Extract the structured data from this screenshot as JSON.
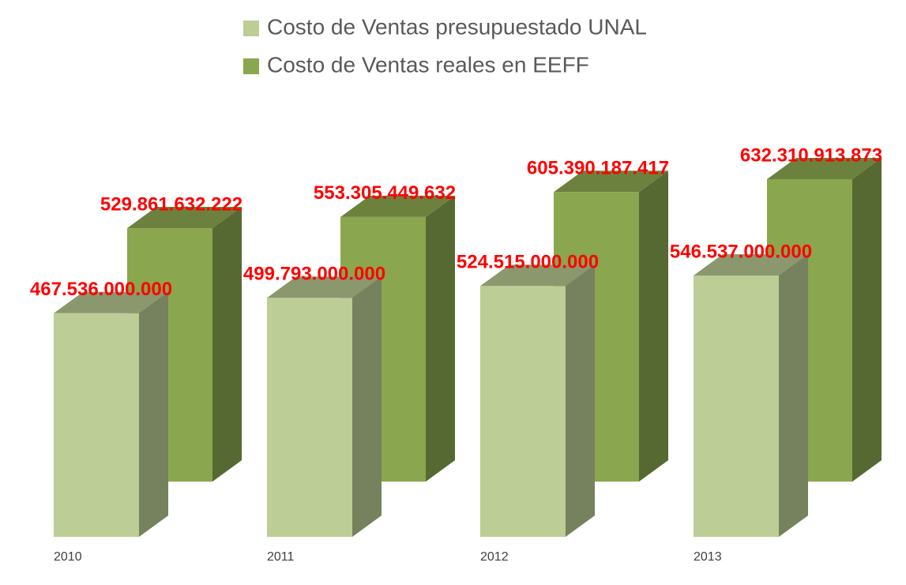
{
  "chart_data": {
    "type": "bar3d",
    "categories": [
      "2010",
      "2011",
      "2012",
      "2013"
    ],
    "series": [
      {
        "name": "Costo  de Ventas presupuestado UNAL",
        "color": "#bccd95",
        "values": [
          467536000000,
          499793000000,
          524515000000,
          546537000000
        ],
        "value_labels": [
          "467.536.000.000",
          "499.793.000.000",
          "524.515.000.000",
          "546.537.000.000"
        ]
      },
      {
        "name": "Costo de Ventas reales en EEFF",
        "color": "#8aa64f",
        "values": [
          529861632222,
          553305449632,
          605390187417,
          632310913873
        ],
        "value_labels": [
          "529.861.632.222",
          "553.305.449.632",
          "605.390.187.417",
          "632.310.913.873"
        ]
      }
    ]
  }
}
